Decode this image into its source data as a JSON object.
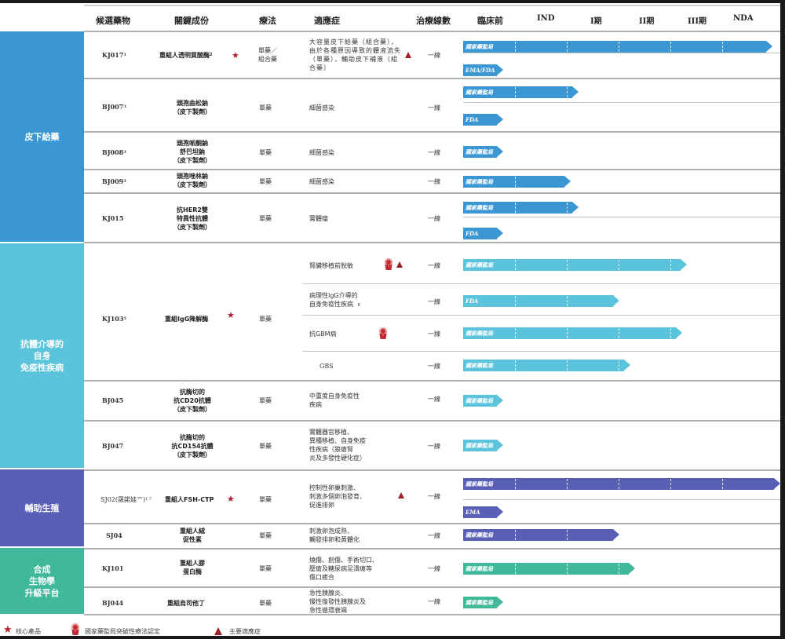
{
  "colors": {
    "subcutaneous": "#3a97d4",
    "autoimmune": "#5bc4dc",
    "reproduction": "#5a5fb6",
    "synthetic_bio": "#3fb99a",
    "core_star": "#b0202a",
    "grid_line": "#b0b0b0"
  },
  "header": {
    "candidate": "候選藥物",
    "component": "關鍵成份",
    "therapy": "療法",
    "indication": "適應症",
    "line": "治療線數",
    "stages": [
      "臨床前",
      "IND",
      "I期",
      "II期",
      "III期",
      "NDA"
    ]
  },
  "categories": [
    {
      "label": "皮下給藥"
    },
    {
      "label": "抗體介導的\n自身\n免疫性疾病"
    },
    {
      "label": "輔助生殖"
    },
    {
      "label": "合成\n生物學\n升級平台"
    }
  ],
  "rows": [
    {
      "code": "KJ017",
      "sup": "1",
      "component": "重組人透明質酸酶",
      "comp_sup": "2",
      "core": true,
      "therapy": "單藥／\n組合藥",
      "indication": "大容量皮下給藥（組合藥），由於各種原因導致的體液流失（單藥），輔助皮下補液（組合藥）",
      "line": "一線",
      "bars": [
        {
          "label": "國家藥監局",
          "end_stage": 5.85
        },
        {
          "label": "EMA/FDA",
          "end_stage": 0.65
        }
      ]
    },
    {
      "code": "BJ007",
      "sup": "3",
      "component": "頭孢曲松鈉\n（皮下製劑）",
      "therapy": "單藥",
      "indication": "細菌感染",
      "line": "一線",
      "bars": [
        {
          "label": "國家藥監局",
          "end_stage": 2.1
        },
        {
          "label": "FDA",
          "end_stage": 0.65
        }
      ]
    },
    {
      "code": "BJ008",
      "sup": "3",
      "component": "頭孢哌酮鈉\n舒巴坦鈉\n（皮下製劑）",
      "therapy": "單藥",
      "indication": "細菌感染",
      "line": "一線",
      "bars": [
        {
          "label": "國家藥監局",
          "end_stage": 0.65
        }
      ]
    },
    {
      "code": "BJ009",
      "sup": "3",
      "component": "頭孢唑林鈉\n（皮下製劑）",
      "therapy": "單藥",
      "indication": "細菌感染",
      "line": "一線",
      "bars": [
        {
          "label": "國家藥監局",
          "end_stage": 1.95
        }
      ]
    },
    {
      "code": "KJ015",
      "sup": "",
      "component": "抗HER2雙\n特異性抗體\n（皮下製劑）",
      "therapy": "單藥",
      "indication": "實體瘤",
      "line": "一線",
      "bars": [
        {
          "label": "國家藥監局",
          "end_stage": 2.1
        },
        {
          "label": "FDA",
          "end_stage": 0.65
        }
      ]
    },
    {
      "code": "KJ103",
      "sup": "5",
      "component": "重組IgG降解酶",
      "core": true,
      "therapy": "單藥",
      "sub_indications": [
        {
          "indication": "腎臟移植前脫敏",
          "breakthrough": true,
          "major": true,
          "line": "一線",
          "bars": [
            {
              "label": "國家藥監局",
              "end_stage": 4.2
            }
          ]
        },
        {
          "indication": "病理性IgG介導的\n自身免疫性疾病",
          "ind_sup": "6",
          "line": "一線",
          "bars": [
            {
              "label": "FDA",
              "end_stage": 2.9
            }
          ]
        },
        {
          "indication": "抗GBM病",
          "breakthrough": true,
          "line": "一線",
          "bars": [
            {
              "label": "國家藥監局",
              "end_stage": 4.1
            }
          ]
        },
        {
          "indication": "GBS",
          "line": "一線",
          "bars": [
            {
              "label": "國家藥監局",
              "end_stage": 3.1
            }
          ]
        }
      ]
    },
    {
      "code": "BJ045",
      "sup": "",
      "component": "抗酶切的\n抗CD20抗體\n（皮下製劑）",
      "therapy": "單藥",
      "indication": "中重度自身免疫性\n疾病",
      "line": "一線",
      "bars": [
        {
          "label": "國家藥監局",
          "end_stage": 0.65
        }
      ]
    },
    {
      "code": "BJ047",
      "sup": "",
      "component": "抗酶切的\n抗CD154抗體\n（皮下製劑）",
      "therapy": "單藥",
      "indication": "實體器官移植、\n異種移植、自身免疫\n性疾病（狼瘡腎\n炎及多發性硬化症）",
      "line": "一線",
      "bars": [
        {
          "label": "國家藥監局",
          "end_stage": 0.65
        }
      ]
    },
    {
      "code": "SJ02(晟諾娃™)",
      "sup": "1,7",
      "component": "重組人FSH-CTP",
      "core": true,
      "therapy": "單藥",
      "indication": "控制性卵巢刺激、\n刺激多個卵泡發育、\n促進排卵",
      "major": true,
      "line": "一線",
      "bars": [
        {
          "label": "國家藥監局",
          "end_stage": 6.0
        },
        {
          "label": "EMA",
          "end_stage": 0.65
        }
      ]
    },
    {
      "code": "SJ04",
      "sup": "",
      "component": "重組人絨\n促性素",
      "therapy": "單藥",
      "indication": "刺激卵泡成熟、\n觸發排卵和黃體化",
      "line": "一線",
      "bars": [
        {
          "label": "國家藥監局",
          "end_stage": 2.9
        }
      ]
    },
    {
      "code": "KJ101",
      "sup": "",
      "component": "重組人膠\n蛋白酶",
      "therapy": "單藥",
      "indication": "燒傷、創傷、手術切口、\n壓瘡及糖尿病足潰瘍等\n傷口癒合",
      "line": "一線",
      "bars": [
        {
          "label": "國家藥監局",
          "end_stage": 3.2
        }
      ]
    },
    {
      "code": "BJ044",
      "sup": "",
      "component": "重組烏司他丁",
      "therapy": "單藥",
      "indication": "急性胰腺炎、\n慢性復發性胰腺炎及\n急性循環衰竭",
      "line": "一線",
      "bars": [
        {
          "label": "國家藥監局",
          "end_stage": 0.65
        }
      ]
    }
  ],
  "legend": {
    "core": "核心產品",
    "breakthrough": "國家藥監局突破性療法認定",
    "major": "主要適應症"
  }
}
